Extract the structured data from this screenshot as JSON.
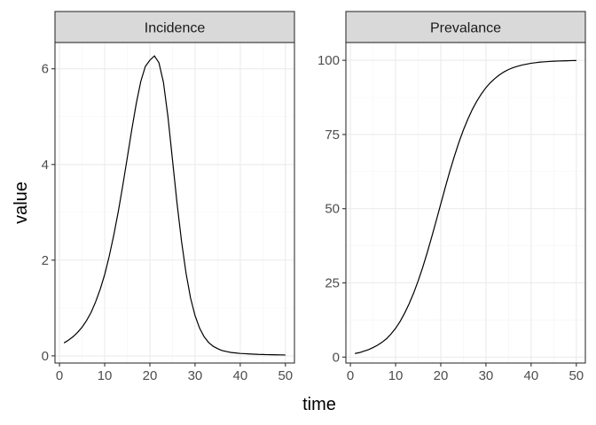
{
  "chart_data": {
    "type": "line",
    "xlabel": "time",
    "ylabel": "value",
    "grid": true,
    "panels": [
      {
        "name": "Incidence",
        "xlim": [
          -1,
          52
        ],
        "ylim": [
          -0.15,
          6.55
        ],
        "xticks": [
          0,
          10,
          20,
          30,
          40,
          50
        ],
        "yticks": [
          0,
          2,
          4,
          6
        ],
        "x": [
          1,
          2,
          3,
          4,
          5,
          6,
          7,
          8,
          9,
          10,
          11,
          12,
          13,
          14,
          15,
          16,
          17,
          18,
          19,
          20,
          21,
          22,
          23,
          24,
          25,
          26,
          27,
          28,
          29,
          30,
          31,
          32,
          33,
          34,
          35,
          36,
          37,
          38,
          39,
          40,
          41,
          42,
          43,
          44,
          45,
          46,
          47,
          48,
          49,
          50
        ],
        "y": [
          0.27,
          0.33,
          0.4,
          0.49,
          0.6,
          0.74,
          0.91,
          1.13,
          1.39,
          1.7,
          2.08,
          2.52,
          3.01,
          3.56,
          4.14,
          4.73,
          5.28,
          5.74,
          6.05,
          6.18,
          6.27,
          6.13,
          5.72,
          5.0,
          4.1,
          3.2,
          2.4,
          1.73,
          1.21,
          0.84,
          0.58,
          0.4,
          0.28,
          0.2,
          0.15,
          0.11,
          0.09,
          0.07,
          0.06,
          0.05,
          0.045,
          0.04,
          0.035,
          0.03,
          0.028,
          0.025,
          0.023,
          0.021,
          0.02,
          0.018
        ]
      },
      {
        "name": "Prevalance",
        "xlim": [
          -1,
          52
        ],
        "ylim": [
          -2,
          106
        ],
        "xticks": [
          0,
          10,
          20,
          30,
          40,
          50
        ],
        "yticks": [
          0,
          25,
          50,
          75,
          100
        ],
        "x": [
          1,
          2,
          3,
          4,
          5,
          6,
          7,
          8,
          9,
          10,
          11,
          12,
          13,
          14,
          15,
          16,
          17,
          18,
          19,
          20,
          21,
          22,
          23,
          24,
          25,
          26,
          27,
          28,
          29,
          30,
          31,
          32,
          33,
          34,
          35,
          36,
          37,
          38,
          39,
          40,
          41,
          42,
          43,
          44,
          45,
          46,
          47,
          48,
          49,
          50
        ],
        "y": [
          1.2,
          1.5,
          2.0,
          2.5,
          3.2,
          4.0,
          5.0,
          6.2,
          7.8,
          9.7,
          12.0,
          14.8,
          18.0,
          21.6,
          25.7,
          30.2,
          35.2,
          40.5,
          46.0,
          51.6,
          57.2,
          62.6,
          67.6,
          72.3,
          76.5,
          80.2,
          83.5,
          86.3,
          88.7,
          90.8,
          92.5,
          93.9,
          95.1,
          96.1,
          96.9,
          97.5,
          98.0,
          98.4,
          98.7,
          99.0,
          99.2,
          99.4,
          99.5,
          99.6,
          99.7,
          99.75,
          99.8,
          99.85,
          99.9,
          99.92
        ]
      }
    ]
  }
}
